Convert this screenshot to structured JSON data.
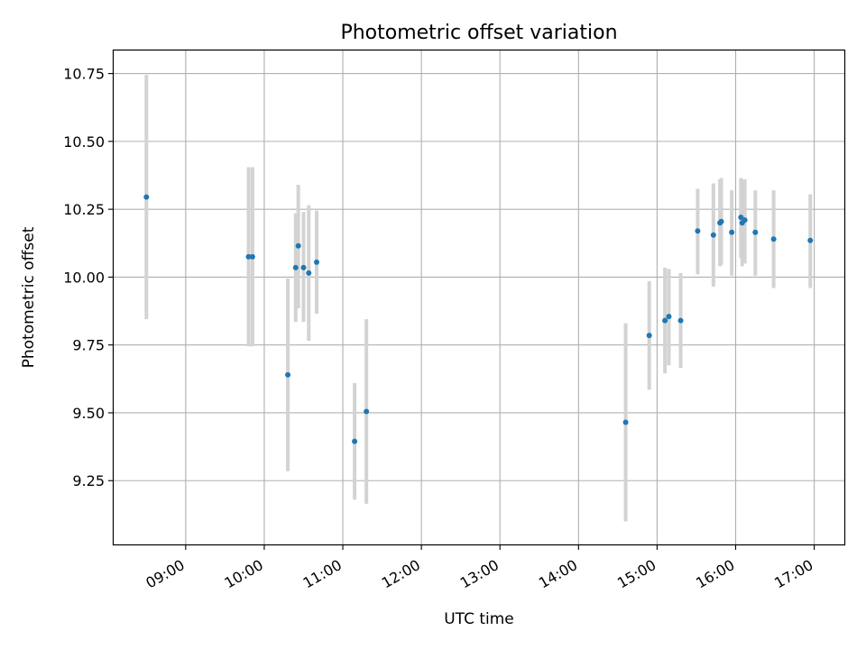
{
  "chart_data": {
    "type": "scatter",
    "title": "Photometric offset variation",
    "xlabel": "UTC time",
    "ylabel": "Photometric offset",
    "x_ticks": [
      "09:00",
      "10:00",
      "11:00",
      "12:00",
      "13:00",
      "14:00",
      "15:00",
      "16:00",
      "17:00"
    ],
    "y_ticks": [
      "9.25",
      "9.50",
      "9.75",
      "10.00",
      "10.25",
      "10.50",
      "10.75"
    ],
    "xlim": [
      "08:05",
      "17:23"
    ],
    "ylim": [
      9.015,
      10.835
    ],
    "grid": true,
    "marker_color": "#1f77b4",
    "errorbar_color": "#d3d3d3",
    "points": [
      {
        "x": "08:30",
        "y": 10.295,
        "err_low": 9.845,
        "err_high": 10.745
      },
      {
        "x": "09:48",
        "y": 10.075,
        "err_low": 9.745,
        "err_high": 10.405
      },
      {
        "x": "09:51",
        "y": 10.075,
        "err_low": 9.745,
        "err_high": 10.405
      },
      {
        "x": "10:18",
        "y": 9.64,
        "err_low": 9.285,
        "err_high": 9.995
      },
      {
        "x": "10:24",
        "y": 10.035,
        "err_low": 9.835,
        "err_high": 10.235
      },
      {
        "x": "10:26",
        "y": 10.115,
        "err_low": 9.885,
        "err_high": 10.34
      },
      {
        "x": "10:30",
        "y": 10.035,
        "err_low": 9.835,
        "err_high": 10.24
      },
      {
        "x": "10:34",
        "y": 10.015,
        "err_low": 9.765,
        "err_high": 10.265
      },
      {
        "x": "10:40",
        "y": 10.055,
        "err_low": 9.865,
        "err_high": 10.245
      },
      {
        "x": "11:09",
        "y": 9.395,
        "err_low": 9.18,
        "err_high": 9.61
      },
      {
        "x": "11:18",
        "y": 9.505,
        "err_low": 9.165,
        "err_high": 9.845
      },
      {
        "x": "14:36",
        "y": 9.465,
        "err_low": 9.1,
        "err_high": 9.83
      },
      {
        "x": "14:54",
        "y": 9.785,
        "err_low": 9.585,
        "err_high": 9.985
      },
      {
        "x": "15:06",
        "y": 9.84,
        "err_low": 9.645,
        "err_high": 10.035
      },
      {
        "x": "15:09",
        "y": 9.855,
        "err_low": 9.675,
        "err_high": 10.03
      },
      {
        "x": "15:18",
        "y": 9.84,
        "err_low": 9.665,
        "err_high": 10.015
      },
      {
        "x": "15:31",
        "y": 10.17,
        "err_low": 10.01,
        "err_high": 10.325
      },
      {
        "x": "15:43",
        "y": 10.155,
        "err_low": 9.965,
        "err_high": 10.345
      },
      {
        "x": "15:48",
        "y": 10.2,
        "err_low": 10.04,
        "err_high": 10.36
      },
      {
        "x": "15:49",
        "y": 10.205,
        "err_low": 10.045,
        "err_high": 10.365
      },
      {
        "x": "15:57",
        "y": 10.165,
        "err_low": 10.005,
        "err_high": 10.32
      },
      {
        "x": "16:04",
        "y": 10.22,
        "err_low": 10.07,
        "err_high": 10.365
      },
      {
        "x": "16:05",
        "y": 10.2,
        "err_low": 10.04,
        "err_high": 10.36
      },
      {
        "x": "16:07",
        "y": 10.21,
        "err_low": 10.05,
        "err_high": 10.36
      },
      {
        "x": "16:15",
        "y": 10.165,
        "err_low": 10.005,
        "err_high": 10.32
      },
      {
        "x": "16:29",
        "y": 10.14,
        "err_low": 9.96,
        "err_high": 10.32
      },
      {
        "x": "16:57",
        "y": 10.135,
        "err_low": 9.96,
        "err_high": 10.305
      }
    ]
  }
}
